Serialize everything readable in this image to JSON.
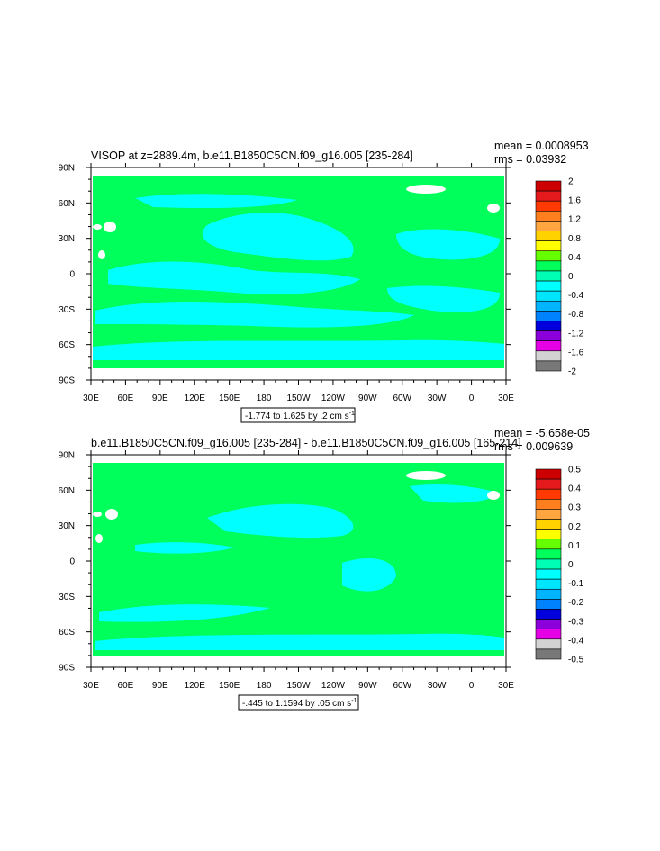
{
  "colors": {
    "ocean": "#00ff5a",
    "cyan": "#00ffff",
    "map_bg": "#ffffff",
    "frame": "#000000"
  },
  "chart_data": [
    {
      "type": "heatmap",
      "title": "VISOP at z=2889.4m, b.e11.B1850C5CN.f09_g16.005 [235-284]",
      "mean_label": "mean = 0.0008953",
      "rms_label": "rms = 0.03932",
      "x_tick_labels": [
        "30E",
        "60E",
        "90E",
        "120E",
        "150E",
        "180",
        "150W",
        "120W",
        "90W",
        "60W",
        "30W",
        "0",
        "30E"
      ],
      "y_tick_labels": [
        "90N",
        "60N",
        "30N",
        "0",
        "30S",
        "60S",
        "90S"
      ],
      "xlim": [
        30,
        390
      ],
      "ylim": [
        -90,
        90
      ],
      "colorbar_levels": [
        "2",
        "1.6",
        "1.2",
        "0.8",
        "0.4",
        "0",
        "-0.4",
        "-0.8",
        "-1.2",
        "-1.6",
        "-2"
      ],
      "colorbar_colors": [
        "#cc0000",
        "#e41a1c",
        "#ff3a00",
        "#ff7f1e",
        "#ffa640",
        "#ffd200",
        "#ffff00",
        "#66ff00",
        "#00ff5a",
        "#00ffb4",
        "#00ffff",
        "#00e6ff",
        "#00b4ff",
        "#0082ff",
        "#0000dc",
        "#8c00dc",
        "#e600e6",
        "#d2d2d2",
        "#787878"
      ],
      "contour_info": "-1.774 to 1.625 by .2 cm s",
      "contour_unit_sup": "-1"
    },
    {
      "type": "heatmap",
      "title": "b.e11.B1850C5CN.f09_g16.005 [235-284] - b.e11.B1850C5CN.f09_g16.005 [165-214]",
      "mean_label": "mean = -5.658e-05",
      "rms_label": "rms = 0.009639",
      "x_tick_labels": [
        "30E",
        "60E",
        "90E",
        "120E",
        "150E",
        "180",
        "150W",
        "120W",
        "90W",
        "60W",
        "30W",
        "0",
        "30E"
      ],
      "y_tick_labels": [
        "90N",
        "60N",
        "30N",
        "0",
        "30S",
        "60S",
        "90S"
      ],
      "xlim": [
        30,
        390
      ],
      "ylim": [
        -90,
        90
      ],
      "colorbar_levels": [
        "0.5",
        "0.4",
        "0.3",
        "0.2",
        "0.1",
        "0",
        "-0.1",
        "-0.2",
        "-0.3",
        "-0.4",
        "-0.5"
      ],
      "colorbar_colors": [
        "#cc0000",
        "#e41a1c",
        "#ff3a00",
        "#ff7f1e",
        "#ffa640",
        "#ffd200",
        "#ffff00",
        "#66ff00",
        "#00ff5a",
        "#00ffb4",
        "#00ffff",
        "#00e6ff",
        "#00b4ff",
        "#0082ff",
        "#0000dc",
        "#8c00dc",
        "#e600e6",
        "#d2d2d2",
        "#787878"
      ],
      "contour_info": "-.445 to 1.1594 by .05 cm s",
      "contour_unit_sup": "-1"
    }
  ]
}
